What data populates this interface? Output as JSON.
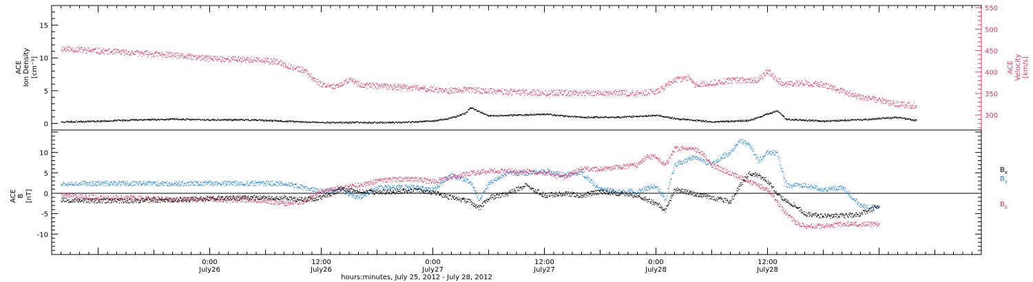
{
  "colors": {
    "black": "#000000",
    "pink": "#e8345f",
    "blue": "#1f86e6"
  },
  "chart_data": [
    {
      "type": "scatter",
      "ylabel": "ACE Ion Density [cm⁻³]",
      "ylabel_lines": [
        "ACE",
        "Ion Density",
        "[cm⁻³]"
      ],
      "y2label_lines": [
        "ACE",
        "Velocity",
        "[km/s]"
      ],
      "ylim": [
        -1,
        18
      ],
      "yticks": [
        0,
        5,
        10,
        15
      ],
      "y2lim": [
        265,
        555
      ],
      "y2ticks": [
        300,
        350,
        400,
        450,
        500,
        550
      ],
      "series": [
        {
          "name": "Density",
          "axis": "left",
          "color": "#000000",
          "points": [
            [
              -16,
              0.3
            ],
            [
              -12,
              0.4
            ],
            [
              -8,
              0.6
            ],
            [
              -4,
              0.7
            ],
            [
              0,
              0.6
            ],
            [
              4,
              0.6
            ],
            [
              8,
              0.4
            ],
            [
              12,
              0.2
            ],
            [
              16,
              0.2
            ],
            [
              20,
              0.2
            ],
            [
              24,
              0.4
            ],
            [
              26,
              0.9
            ],
            [
              27.5,
              1.6
            ],
            [
              28,
              2.5
            ],
            [
              29,
              1.8
            ],
            [
              30,
              1.2
            ],
            [
              33,
              1.3
            ],
            [
              36,
              1.5
            ],
            [
              38,
              1.2
            ],
            [
              40,
              1.0
            ],
            [
              44,
              1.0
            ],
            [
              48,
              1.3
            ],
            [
              50,
              0.8
            ],
            [
              54,
              0.3
            ],
            [
              58,
              0.5
            ],
            [
              60,
              1.5
            ],
            [
              61,
              2.0
            ],
            [
              62,
              0.7
            ],
            [
              66,
              0.4
            ],
            [
              70,
              0.6
            ],
            [
              74,
              1.0
            ],
            [
              76,
              0.5
            ]
          ]
        },
        {
          "name": "Velocity",
          "axis": "right",
          "color": "#e8345f",
          "points": [
            [
              -16,
              455
            ],
            [
              -12,
              450
            ],
            [
              -8,
              445
            ],
            [
              -4,
              440
            ],
            [
              0,
              432
            ],
            [
              4,
              430
            ],
            [
              7,
              425
            ],
            [
              10,
              405
            ],
            [
              11,
              388
            ],
            [
              12,
              372
            ],
            [
              14,
              367
            ],
            [
              15,
              385
            ],
            [
              16,
              372
            ],
            [
              18,
              368
            ],
            [
              20,
              366
            ],
            [
              24,
              361
            ],
            [
              26,
              357
            ],
            [
              28,
              360
            ],
            [
              30,
              356
            ],
            [
              33,
              354
            ],
            [
              36,
              352
            ],
            [
              40,
              352
            ],
            [
              44,
              352
            ],
            [
              46,
              351
            ],
            [
              48,
              355
            ],
            [
              50,
              382
            ],
            [
              51.5,
              388
            ],
            [
              52,
              372
            ],
            [
              53,
              373
            ],
            [
              55,
              378
            ],
            [
              57,
              383
            ],
            [
              59,
              382
            ],
            [
              60,
              402
            ],
            [
              61,
              381
            ],
            [
              62,
              372
            ],
            [
              64,
              376
            ],
            [
              66,
              371
            ],
            [
              68,
              356
            ],
            [
              70,
              342
            ],
            [
              72,
              335
            ],
            [
              74,
              326
            ],
            [
              76,
              322
            ]
          ]
        }
      ]
    },
    {
      "type": "scatter",
      "ylabel": "ACE B [nT]",
      "ylabel_lines": [
        "ACE",
        "B",
        "[nT]"
      ],
      "ylim": [
        -15,
        15.5
      ],
      "yticks": [
        -10,
        -5,
        0,
        5,
        10
      ],
      "xlabel": "hours:minutes, July 25, 2012 - July 28, 2012",
      "xlim": [
        -17,
        83
      ],
      "xticks": [
        {
          "h": 0,
          "time": "0:00",
          "date": "July26"
        },
        {
          "h": 12,
          "time": "12:00",
          "date": "July26"
        },
        {
          "h": 24,
          "time": "0:00",
          "date": "July27"
        },
        {
          "h": 36,
          "time": "12:00",
          "date": "July27"
        },
        {
          "h": 48,
          "time": "0:00",
          "date": "July28"
        },
        {
          "h": 60,
          "time": "12:00",
          "date": "July28"
        }
      ],
      "legend": [
        {
          "name": "B",
          "sub": "x",
          "color": "#000000"
        },
        {
          "name": "B",
          "sub": "y",
          "color": "#1f86e6"
        },
        {
          "name": "B",
          "sub": "z",
          "color": "#e8345f"
        }
      ],
      "series": [
        {
          "name": "Bx",
          "color": "#000000",
          "points": [
            [
              -16,
              -1.5
            ],
            [
              -12,
              -1.8
            ],
            [
              -8,
              -1.7
            ],
            [
              -4,
              -1.5
            ],
            [
              0,
              -1.2
            ],
            [
              4,
              -1.0
            ],
            [
              8,
              -1.0
            ],
            [
              10,
              -1.5
            ],
            [
              12,
              -1.0
            ],
            [
              14,
              1.0
            ],
            [
              16,
              0.5
            ],
            [
              18,
              0.3
            ],
            [
              20,
              0.5
            ],
            [
              22,
              0.8
            ],
            [
              24,
              0.3
            ],
            [
              26,
              -1.0
            ],
            [
              28,
              -2.0
            ],
            [
              29,
              -3.5
            ],
            [
              30,
              -1.0
            ],
            [
              32,
              0
            ],
            [
              34,
              2.0
            ],
            [
              36,
              -0.5
            ],
            [
              38,
              0
            ],
            [
              40,
              -0.5
            ],
            [
              42,
              0.5
            ],
            [
              44,
              0
            ],
            [
              46,
              -0.5
            ],
            [
              48,
              -2.5
            ],
            [
              49,
              -4.0
            ],
            [
              50,
              1.0
            ],
            [
              52,
              0
            ],
            [
              54,
              -1.0
            ],
            [
              56,
              -2.0
            ],
            [
              57,
              2.0
            ],
            [
              58,
              5.0
            ],
            [
              59,
              4.5
            ],
            [
              60,
              3.0
            ],
            [
              61,
              0
            ],
            [
              62,
              -2.0
            ],
            [
              63,
              -3.0
            ],
            [
              64,
              -5.0
            ],
            [
              66,
              -5.5
            ],
            [
              68,
              -5.5
            ],
            [
              70,
              -5.0
            ],
            [
              72,
              -3.0
            ]
          ]
        },
        {
          "name": "By",
          "color": "#1f86e6",
          "points": [
            [
              -16,
              2.5
            ],
            [
              -12,
              2.5
            ],
            [
              -8,
              2.5
            ],
            [
              -4,
              2.5
            ],
            [
              0,
              2.5
            ],
            [
              4,
              2.5
            ],
            [
              8,
              2.5
            ],
            [
              10,
              1.5
            ],
            [
              12,
              0.5
            ],
            [
              14,
              1.0
            ],
            [
              16,
              -1.0
            ],
            [
              18,
              1.5
            ],
            [
              20,
              1.5
            ],
            [
              22,
              1.5
            ],
            [
              24,
              1.0
            ],
            [
              26,
              4.5
            ],
            [
              28,
              3.0
            ],
            [
              29,
              -1.5
            ],
            [
              30,
              2.5
            ],
            [
              32,
              5.0
            ],
            [
              34,
              5.0
            ],
            [
              36,
              5.5
            ],
            [
              38,
              4.5
            ],
            [
              40,
              5.0
            ],
            [
              42,
              1.0
            ],
            [
              44,
              0.5
            ],
            [
              46,
              0.5
            ],
            [
              48,
              2.0
            ],
            [
              49,
              -1.5
            ],
            [
              50,
              7.0
            ],
            [
              51,
              8.0
            ],
            [
              52,
              9.0
            ],
            [
              54,
              7.0
            ],
            [
              55,
              9.0
            ],
            [
              56,
              10.0
            ],
            [
              57,
              13.0
            ],
            [
              58,
              12.0
            ],
            [
              59,
              8.0
            ],
            [
              60,
              10.0
            ],
            [
              61,
              10.0
            ],
            [
              62,
              2.0
            ],
            [
              64,
              2.0
            ],
            [
              66,
              1.0
            ],
            [
              68,
              1.5
            ],
            [
              70,
              -3.0
            ],
            [
              72,
              -3.5
            ]
          ]
        },
        {
          "name": "Bz",
          "color": "#e8345f",
          "points": [
            [
              -16,
              -0.5
            ],
            [
              -12,
              -1.0
            ],
            [
              -8,
              -1.0
            ],
            [
              -4,
              -1.5
            ],
            [
              0,
              -1.5
            ],
            [
              4,
              -1.5
            ],
            [
              6,
              -1.8
            ],
            [
              8,
              -2.5
            ],
            [
              10,
              -2.0
            ],
            [
              12,
              0.5
            ],
            [
              14,
              1.5
            ],
            [
              16,
              2.0
            ],
            [
              18,
              3.0
            ],
            [
              20,
              3.5
            ],
            [
              22,
              3.5
            ],
            [
              24,
              3.0
            ],
            [
              26,
              4.0
            ],
            [
              28,
              5.0
            ],
            [
              30,
              5.5
            ],
            [
              32,
              5.5
            ],
            [
              34,
              5.5
            ],
            [
              36,
              5.0
            ],
            [
              38,
              4.0
            ],
            [
              40,
              6.0
            ],
            [
              42,
              6.0
            ],
            [
              44,
              6.5
            ],
            [
              46,
              7.0
            ],
            [
              47,
              9.0
            ],
            [
              48,
              9.0
            ],
            [
              49,
              7.0
            ],
            [
              50,
              11.0
            ],
            [
              52,
              11.0
            ],
            [
              53,
              10.0
            ],
            [
              54,
              7.0
            ],
            [
              56,
              5.0
            ],
            [
              58,
              3.0
            ],
            [
              60,
              1.0
            ],
            [
              61,
              -2.0
            ],
            [
              62,
              -5.0
            ],
            [
              63,
              -7.0
            ],
            [
              64,
              -8.0
            ],
            [
              66,
              -8.0
            ],
            [
              68,
              -7.5
            ],
            [
              70,
              -7.5
            ],
            [
              72,
              -7.5
            ]
          ]
        }
      ]
    }
  ]
}
